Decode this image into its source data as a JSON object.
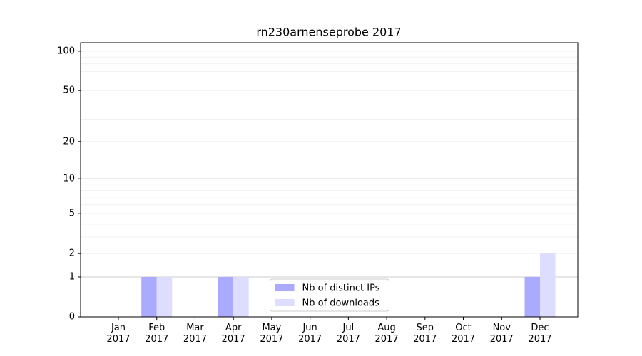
{
  "chart_data": {
    "type": "bar",
    "title": "rn230arnenseprobe 2017",
    "categories": [
      "Jan\n2017",
      "Feb\n2017",
      "Mar\n2017",
      "Apr\n2017",
      "May\n2017",
      "Jun\n2017",
      "Jul\n2017",
      "Aug\n2017",
      "Sep\n2017",
      "Oct\n2017",
      "Nov\n2017",
      "Dec\n2017"
    ],
    "series": [
      {
        "name": "Nb of distinct IPs",
        "color": "#aaaaff",
        "values": [
          0,
          1,
          0,
          1,
          0,
          0,
          0,
          0,
          0,
          0,
          0,
          1
        ]
      },
      {
        "name": "Nb of downloads",
        "color": "#ddddff",
        "values": [
          0,
          1,
          0,
          1,
          0,
          0,
          0,
          0,
          0,
          0,
          0,
          2
        ]
      }
    ],
    "yscale": "symlog",
    "ylim": [
      0,
      116
    ],
    "yticks": [
      0,
      1,
      2,
      5,
      10,
      20,
      50,
      100
    ],
    "yminor": [
      3,
      4,
      6,
      7,
      8,
      9,
      30,
      40,
      60,
      70,
      80,
      90
    ],
    "grid": true,
    "legend": "lower center"
  }
}
